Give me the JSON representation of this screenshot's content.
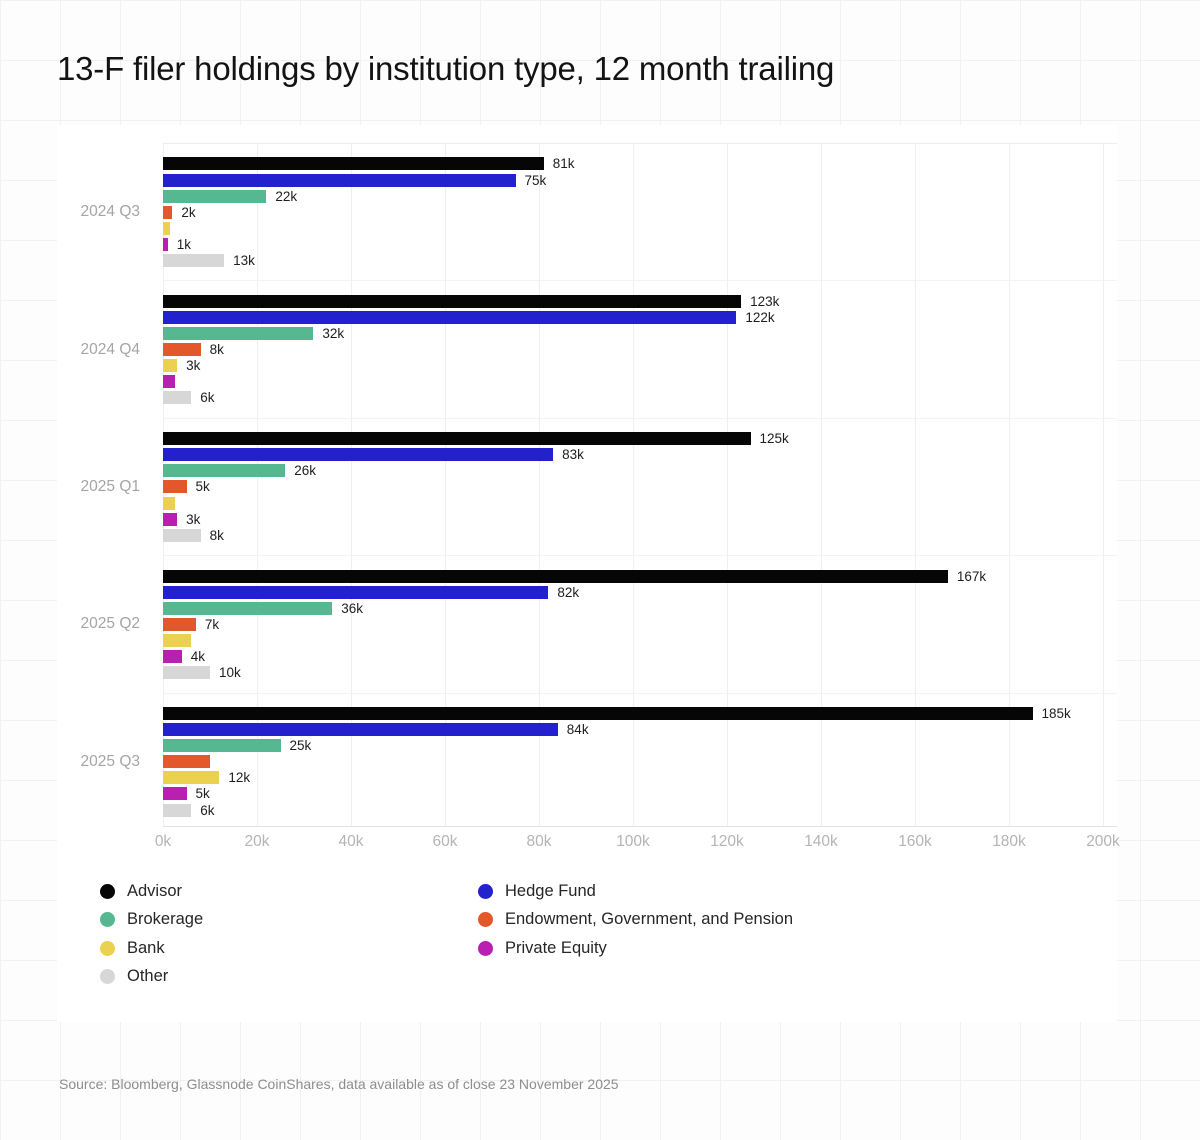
{
  "title": "13-F filer holdings by institution type, 12 month trailing",
  "source": "Source: Bloomberg, Glassnode CoinShares, data available as of close 23 November 2025",
  "colors": {
    "advisor": "#060606",
    "hedge_fund": "#2321cd",
    "brokerage": "#56b890",
    "endowment": "#e2582a",
    "bank": "#ecd04f",
    "private_equity": "#b91fb1",
    "other": "#d7d7d7",
    "grid": "#efefef",
    "axis_text": "#b4b4b4"
  },
  "chart_data": {
    "type": "bar",
    "orientation": "horizontal",
    "title": "13-F filer holdings by institution type, 12 month trailing",
    "categories": [
      "2024 Q3",
      "2024 Q4",
      "2025 Q1",
      "2025 Q2",
      "2025 Q3"
    ],
    "unit": "k",
    "xlim": [
      0,
      200
    ],
    "x_ticks": [
      "0k",
      "20k",
      "40k",
      "60k",
      "80k",
      "100k",
      "120k",
      "140k",
      "160k",
      "180k",
      "200k"
    ],
    "x_tick_values": [
      0,
      20,
      40,
      60,
      80,
      100,
      120,
      140,
      160,
      180,
      200
    ],
    "grid": true,
    "legend_position": "bottom",
    "series": [
      {
        "name": "Advisor",
        "color": "#060606",
        "values": [
          81,
          123,
          125,
          167,
          185
        ],
        "labels": [
          "81k",
          "123k",
          "125k",
          "167k",
          "185k"
        ]
      },
      {
        "name": "Hedge Fund",
        "color": "#2321cd",
        "values": [
          75,
          122,
          83,
          82,
          84
        ],
        "labels": [
          "75k",
          "122k",
          "83k",
          "82k",
          "84k"
        ]
      },
      {
        "name": "Brokerage",
        "color": "#56b890",
        "values": [
          22,
          32,
          26,
          36,
          25
        ],
        "labels": [
          "22k",
          "32k",
          "26k",
          "36k",
          "25k"
        ]
      },
      {
        "name": "Endowment, Government, and Pension",
        "color": "#e2582a",
        "values": [
          2,
          8,
          5,
          7,
          10
        ],
        "labels": [
          "2k",
          "8k",
          "5k",
          "7k",
          ""
        ]
      },
      {
        "name": "Bank",
        "color": "#ecd04f",
        "values": [
          1.5,
          3,
          2.5,
          6,
          12
        ],
        "labels": [
          "",
          "3k",
          "",
          "",
          "12k"
        ]
      },
      {
        "name": "Private Equity",
        "color": "#b91fb1",
        "values": [
          1,
          2.5,
          3,
          4,
          5
        ],
        "labels": [
          "1k",
          "",
          "3k",
          "4k",
          "5k"
        ]
      },
      {
        "name": "Other",
        "color": "#d7d7d7",
        "values": [
          13,
          6,
          8,
          10,
          6
        ],
        "labels": [
          "13k",
          "6k",
          "8k",
          "10k",
          "6k"
        ]
      }
    ]
  },
  "legend": {
    "columns": [
      [
        {
          "label": "Advisor",
          "color": "#060606"
        },
        {
          "label": "Brokerage",
          "color": "#56b890"
        },
        {
          "label": "Bank",
          "color": "#ecd04f"
        },
        {
          "label": "Other",
          "color": "#d7d7d7"
        }
      ],
      [
        {
          "label": "Hedge Fund",
          "color": "#2321cd"
        },
        {
          "label": "Endowment, Government, and Pension",
          "color": "#e2582a"
        },
        {
          "label": "Private Equity",
          "color": "#b91fb1"
        }
      ]
    ]
  }
}
